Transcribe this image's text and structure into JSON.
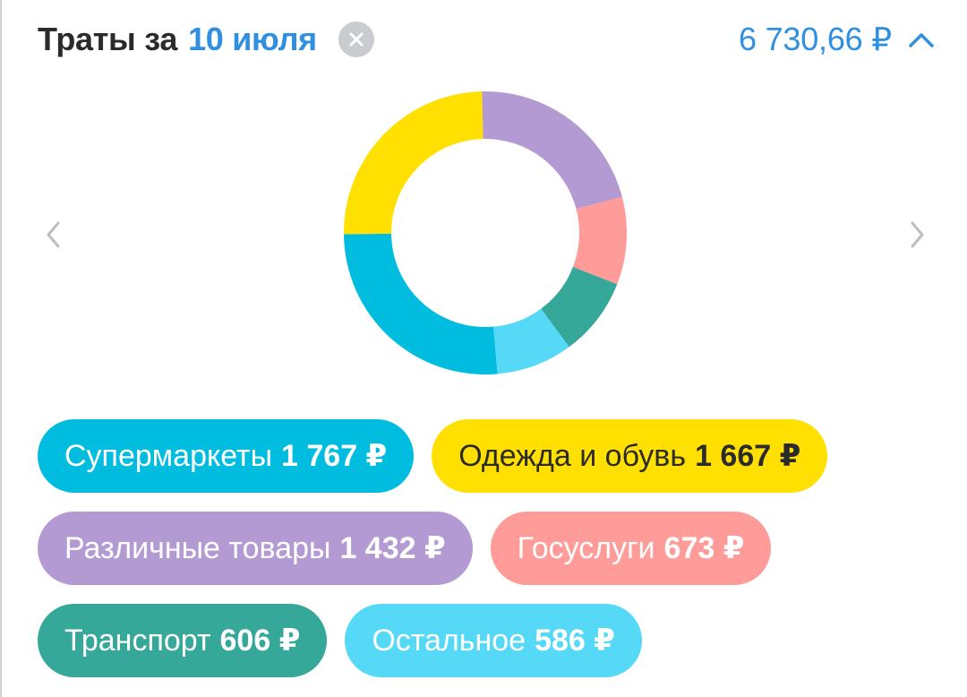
{
  "header": {
    "title": "Траты за",
    "date": "10 июля",
    "total": "6 730,66 ₽",
    "clear_icon": "close-icon",
    "collapse_icon": "chevron-up-icon"
  },
  "navigation": {
    "prev_icon": "chevron-left-icon",
    "next_icon": "chevron-right-icon"
  },
  "categories": [
    {
      "name": "Супермаркеты",
      "amount": "1 767 ₽",
      "value": 1767,
      "color": "#00bde0",
      "text": "light"
    },
    {
      "name": "Одежда и обувь",
      "amount": "1 667 ₽",
      "value": 1667,
      "color": "#ffe000",
      "text": "dark"
    },
    {
      "name": "Различные товары",
      "amount": "1 432 ₽",
      "value": 1432,
      "color": "#b39ad3",
      "text": "light"
    },
    {
      "name": "Госуслуги",
      "amount": "673 ₽",
      "value": 673,
      "color": "#ff9b98",
      "text": "light"
    },
    {
      "name": "Транспорт",
      "amount": "606 ₽",
      "value": 606,
      "color": "#35a89a",
      "text": "light"
    },
    {
      "name": "Остальное",
      "amount": "586 ₽",
      "value": 586,
      "color": "#56d9f7",
      "text": "light"
    }
  ],
  "chart_data": {
    "type": "pie",
    "categories": [
      "Супермаркеты",
      "Одежда и обувь",
      "Различные товары",
      "Госуслуги",
      "Транспорт",
      "Остальное"
    ],
    "values": [
      1767,
      1667,
      1432,
      673,
      606,
      586
    ],
    "colors": [
      "#00bde0",
      "#ffe000",
      "#b39ad3",
      "#ff9b98",
      "#35a89a",
      "#56d9f7"
    ],
    "title": "",
    "donut": true
  }
}
